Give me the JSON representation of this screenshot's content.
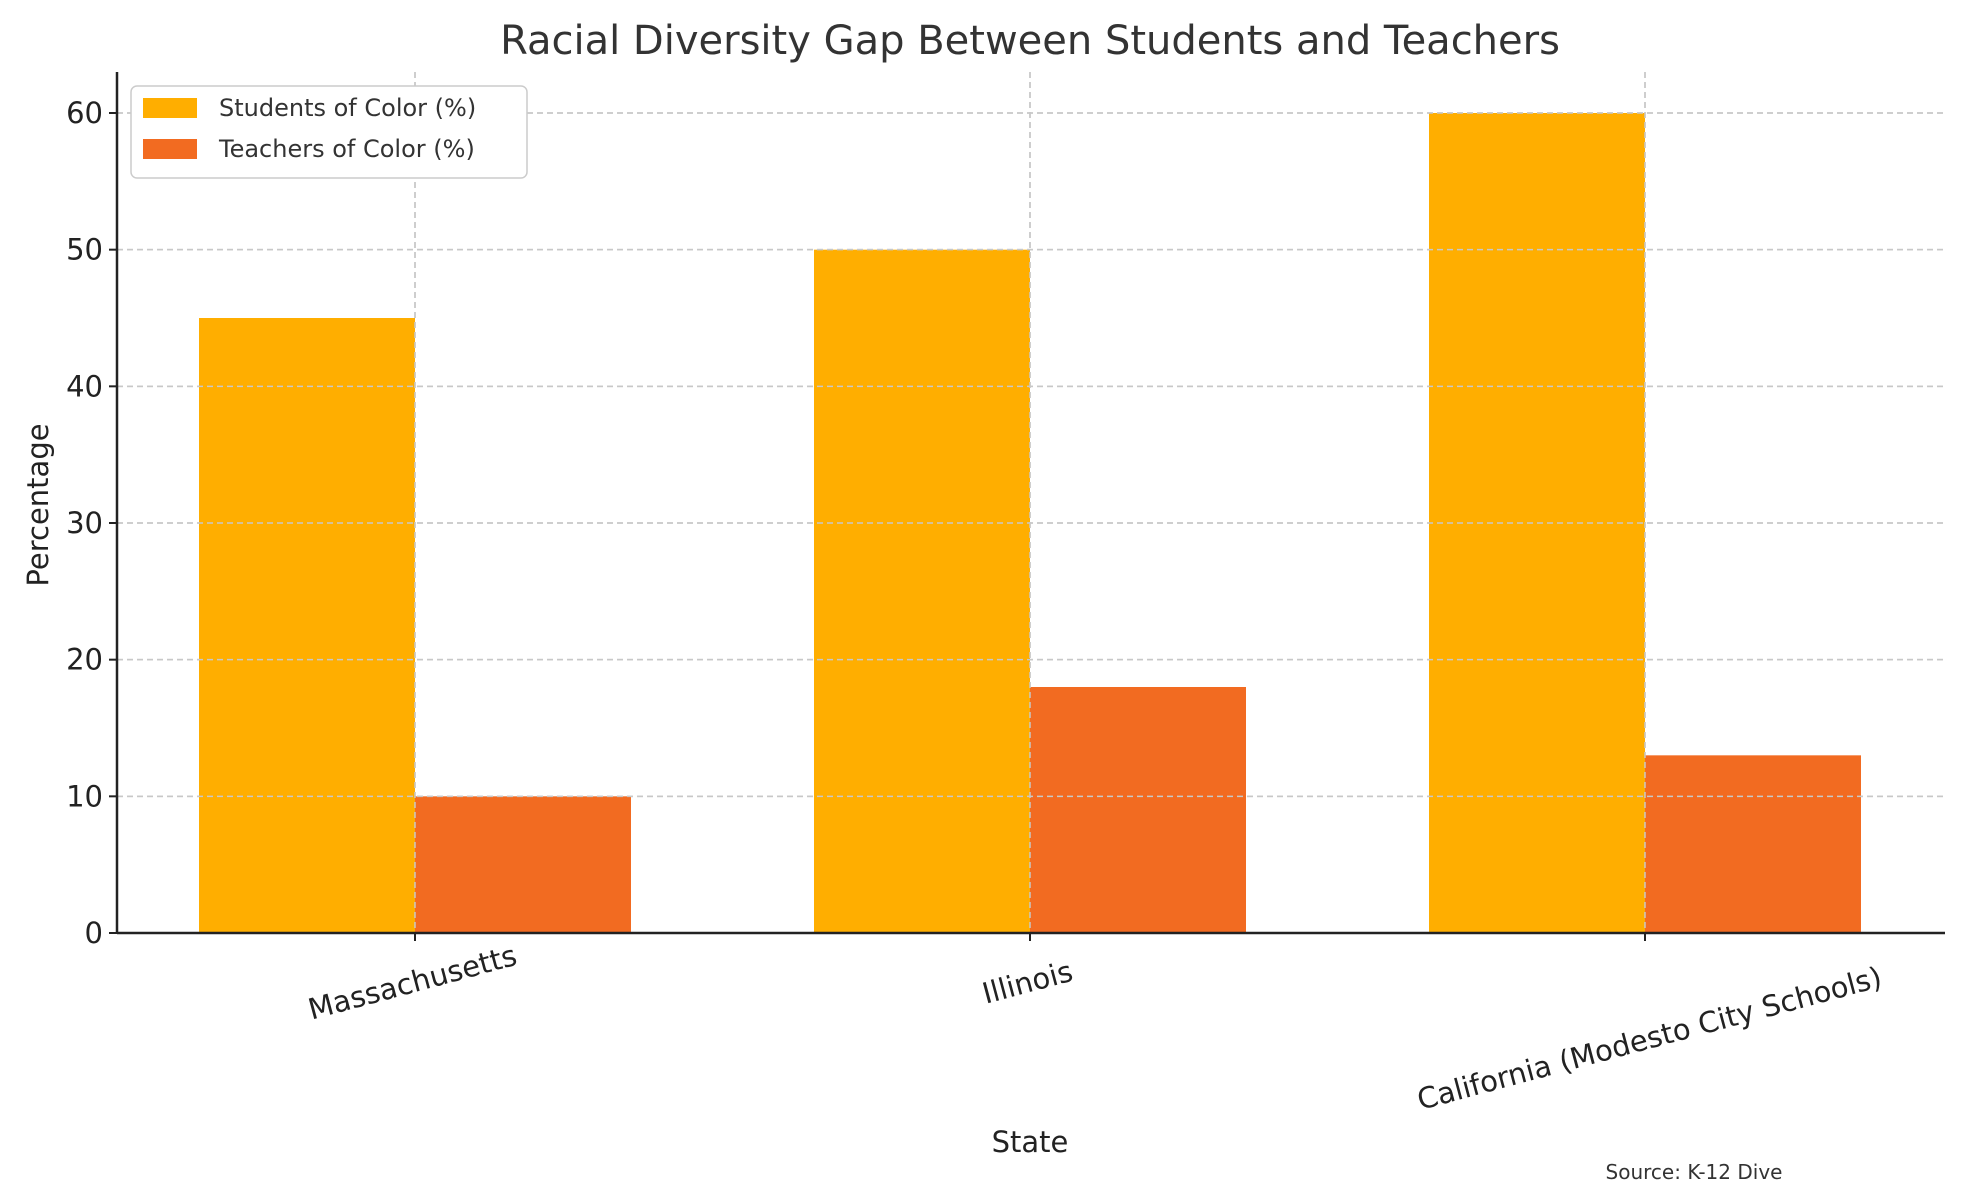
{
  "chart_data": {
    "type": "bar",
    "title": "Racial Diversity Gap Between Students and Teachers",
    "xlabel": "State",
    "ylabel": "Percentage",
    "categories": [
      "Massachusetts",
      "Illinois",
      "California (Modesto City Schools)"
    ],
    "series": [
      {
        "name": "Students of Color (%)",
        "values": [
          45,
          50,
          60
        ],
        "color": "#FFAE00"
      },
      {
        "name": "Teachers of Color (%)",
        "values": [
          10,
          18,
          13
        ],
        "color": "#F26B21"
      }
    ],
    "ylim": [
      0,
      63
    ],
    "yticks": [
      0,
      10,
      20,
      30,
      40,
      50,
      60
    ],
    "grid": true,
    "legend_position": "top-left",
    "source_note": "Source: K-12 Dive"
  }
}
